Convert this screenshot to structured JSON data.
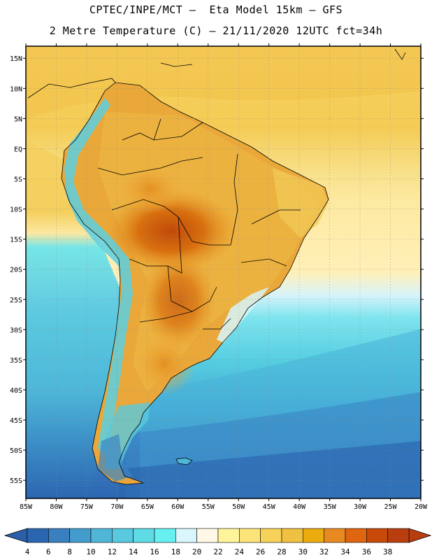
{
  "header": {
    "line1": "CPTEC/INPE/MCT –  Eta Model 15km – GFS",
    "line2": "2 Metre Temperature (C) – 21/11/2020 12UTC fct=34h"
  },
  "map": {
    "lon_range": [
      -85,
      -20
    ],
    "lat_range": [
      -58,
      17
    ],
    "lat_ticks": [
      {
        "value": 15,
        "label": "15N"
      },
      {
        "value": 10,
        "label": "10N"
      },
      {
        "value": 5,
        "label": "5N"
      },
      {
        "value": 0,
        "label": "EQ"
      },
      {
        "value": -5,
        "label": "5S"
      },
      {
        "value": -10,
        "label": "10S"
      },
      {
        "value": -15,
        "label": "15S"
      },
      {
        "value": -20,
        "label": "20S"
      },
      {
        "value": -25,
        "label": "25S"
      },
      {
        "value": -30,
        "label": "30S"
      },
      {
        "value": -35,
        "label": "35S"
      },
      {
        "value": -40,
        "label": "40S"
      },
      {
        "value": -45,
        "label": "45S"
      },
      {
        "value": -50,
        "label": "50S"
      },
      {
        "value": -55,
        "label": "55S"
      }
    ],
    "lon_ticks": [
      {
        "value": -85,
        "label": "85W"
      },
      {
        "value": -80,
        "label": "80W"
      },
      {
        "value": -75,
        "label": "75W"
      },
      {
        "value": -70,
        "label": "70W"
      },
      {
        "value": -65,
        "label": "65W"
      },
      {
        "value": -60,
        "label": "60W"
      },
      {
        "value": -55,
        "label": "55W"
      },
      {
        "value": -50,
        "label": "50W"
      },
      {
        "value": -45,
        "label": "45W"
      },
      {
        "value": -40,
        "label": "40W"
      },
      {
        "value": -35,
        "label": "35W"
      },
      {
        "value": -30,
        "label": "30W"
      },
      {
        "value": -25,
        "label": "25W"
      },
      {
        "value": -20,
        "label": "20W"
      }
    ]
  },
  "colorbar": {
    "labels": [
      "4",
      "6",
      "8",
      "10",
      "12",
      "14",
      "16",
      "18",
      "20",
      "22",
      "24",
      "26",
      "28",
      "30",
      "32",
      "34",
      "36",
      "38"
    ],
    "colors": [
      "#2a66b0",
      "#3a7fc0",
      "#449ccd",
      "#4fb6d8",
      "#59c9df",
      "#5fdbe6",
      "#66f0f0",
      "#d8f6fc",
      "#fff8e6",
      "#fff49a",
      "#fde47a",
      "#f6d25a",
      "#f0c040",
      "#ecac10",
      "#e88a20",
      "#e06510",
      "#c84a08",
      "#b83e10"
    ]
  }
}
